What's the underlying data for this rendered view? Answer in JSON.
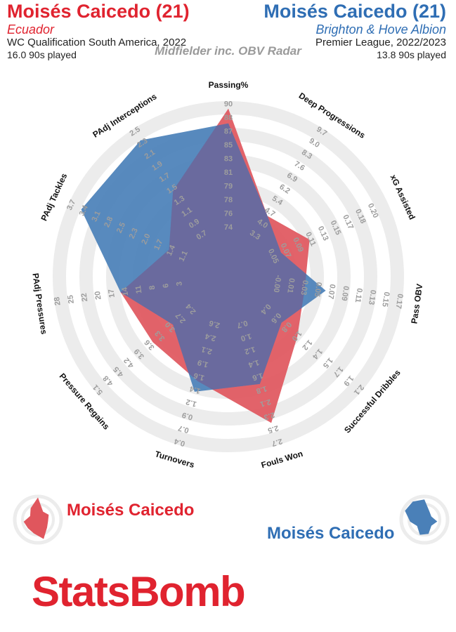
{
  "header": {
    "left": {
      "player": "Moisés Caicedo (21)",
      "team": "Ecuador",
      "competition": "WC Qualification South America, 2022",
      "played": "16.0 90s played"
    },
    "right": {
      "player": "Moisés Caicedo (21)",
      "team": "Brighton & Hove Albion",
      "competition": "Premier League, 2022/2023",
      "played": "13.8 90s played"
    },
    "subtitle": "Midfielder inc. OBV Radar"
  },
  "legend": {
    "left_name": "Moisés Caicedo",
    "right_name": "Moisés Caicedo"
  },
  "brand": "StatsBomb",
  "colors": {
    "red": "#e0232f",
    "blue": "#2f6eb4",
    "red_fill": "#e0565d",
    "blue_fill": "#4a80b8",
    "overlap": "#6a6a9e",
    "ring": "#ececec"
  },
  "chart_data": {
    "type": "radar",
    "axes": [
      {
        "label": "Passing%",
        "ticks": [
          "74",
          "76",
          "78",
          "79",
          "81",
          "83",
          "85",
          "87",
          "88",
          "90"
        ]
      },
      {
        "label": "Deep Progressions",
        "ticks": [
          "3.3",
          "4.0",
          "4.7",
          "5.4",
          "6.2",
          "6.9",
          "7.6",
          "8.3",
          "9.0",
          "9.7"
        ]
      },
      {
        "label": "xG Assisted",
        "ticks": [
          "0.05",
          "0.07",
          "0.09",
          "0.11",
          "0.13",
          "0.15",
          "0.17",
          "0.18",
          "0.20"
        ]
      },
      {
        "label": "Pass OBV",
        "ticks": [
          "-0.00",
          "0.01",
          "0.03",
          "0.05",
          "0.07",
          "0.09",
          "0.11",
          "0.13",
          "0.15",
          "0.17"
        ]
      },
      {
        "label": "Successful Dribbles",
        "ticks": [
          "0.4",
          "0.6",
          "0.8",
          "1.0",
          "1.2",
          "1.4",
          "1.5",
          "1.7",
          "1.9",
          "2.1"
        ]
      },
      {
        "label": "Fouls Won",
        "ticks": [
          "0.7",
          "1.0",
          "1.2",
          "1.4",
          "1.6",
          "1.8",
          "2.1",
          "2.3",
          "2.5",
          "2.7"
        ]
      },
      {
        "label": "Turnovers",
        "ticks": [
          "2.6",
          "2.4",
          "2.1",
          "1.9",
          "1.6",
          "1.4",
          "1.2",
          "0.9",
          "0.7",
          "0.4"
        ]
      },
      {
        "label": "Pressure Regains",
        "ticks": [
          "2.4",
          "2.7",
          "3.0",
          "3.3",
          "3.6",
          "3.9",
          "4.2",
          "4.5",
          "4.8",
          "5.1"
        ]
      },
      {
        "label": "PAdj Pressures",
        "ticks": [
          "3",
          "6",
          "8",
          "11",
          "14",
          "17",
          "20",
          "22",
          "25",
          "28"
        ]
      },
      {
        "label": "PAdj Tackles",
        "ticks": [
          "1.1",
          "1.4",
          "1.7",
          "2.0",
          "2.3",
          "2.5",
          "2.8",
          "3.1",
          "3.4",
          "3.7"
        ]
      },
      {
        "label": "PAdj Interceptions",
        "ticks": [
          "0.7",
          "0.9",
          "1.1",
          "1.3",
          "1.5",
          "1.7",
          "1.9",
          "2.1",
          "2.3",
          "2.5"
        ]
      }
    ],
    "series": [
      {
        "name": "Moisés Caicedo",
        "subtitle": "Ecuador",
        "color": "#e0565d",
        "values": [
          89,
          4.2,
          0.09,
          0.03,
          0.9,
          2.3,
          1.6,
          3.4,
          14,
          1.3,
          1.4
        ]
      },
      {
        "name": "Moisés Caicedo",
        "subtitle": "Brighton & Hove Albion",
        "color": "#4a80b8",
        "values": [
          87,
          4.2,
          0.05,
          0.06,
          0.6,
          1.6,
          1.4,
          2.8,
          14,
          3.4,
          2.3
        ]
      }
    ],
    "ranges": [
      [
        72,
        90
      ],
      [
        2.6,
        9.7
      ],
      [
        0.03,
        0.2
      ],
      [
        -0.02,
        0.17
      ],
      [
        0.2,
        2.1
      ],
      [
        0.4,
        2.7
      ],
      [
        2.8,
        0.4
      ],
      [
        2.1,
        5.1
      ],
      [
        0,
        28
      ],
      [
        0.8,
        3.7
      ],
      [
        0.5,
        2.5
      ]
    ]
  }
}
